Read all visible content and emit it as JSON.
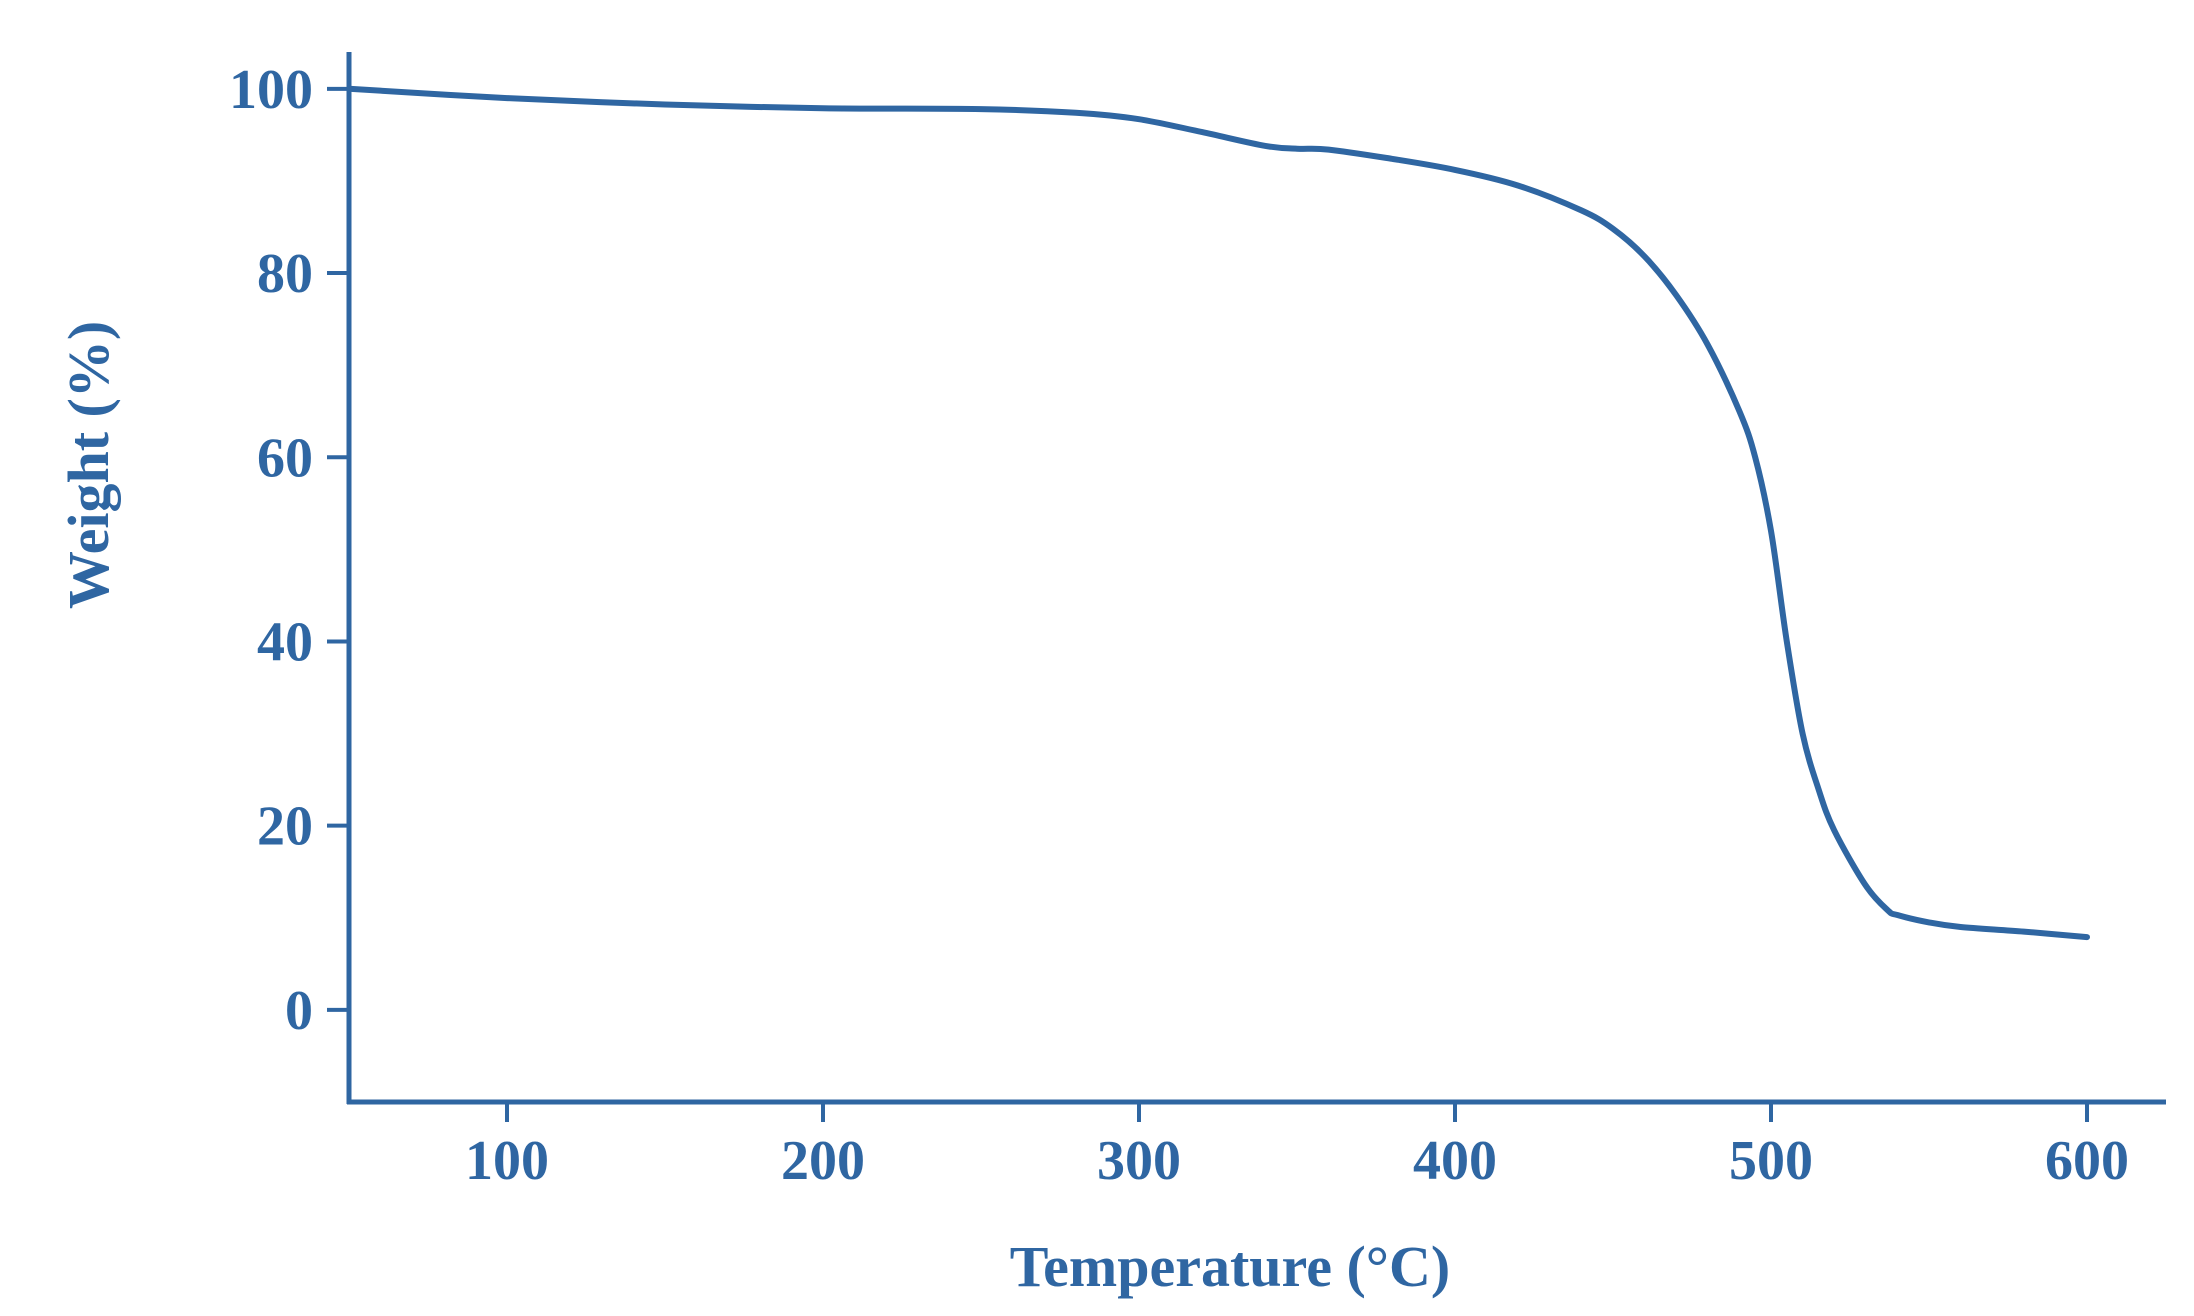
{
  "colors": {
    "accent": "#2f66a2",
    "background": "#ffffff"
  },
  "chart_data": {
    "type": "line",
    "title": "",
    "xlabel": "Temperature (°C)",
    "ylabel": "Weight (%)",
    "xlim": [
      50,
      625
    ],
    "ylim": [
      -10,
      104
    ],
    "xticks": [
      100,
      200,
      300,
      400,
      500,
      600
    ],
    "yticks": [
      0,
      20,
      40,
      60,
      80,
      100
    ],
    "grid": false,
    "legend": "none",
    "series": [
      {
        "x": [
          50,
          100,
          150,
          200,
          250,
          280,
          300,
          320,
          340,
          350,
          360,
          380,
          400,
          420,
          440,
          450,
          460,
          470,
          480,
          490,
          495,
          500,
          505,
          510,
          515,
          520,
          530,
          537,
          540,
          550,
          560,
          580,
          600
        ],
        "y": [
          100,
          99.0,
          98.3,
          97.9,
          97.8,
          97.4,
          96.7,
          95.3,
          93.8,
          93.5,
          93.4,
          92.4,
          91.2,
          89.5,
          86.8,
          84.8,
          81.8,
          77.6,
          72.2,
          65.0,
          60.0,
          52.0,
          40.0,
          30.0,
          24.0,
          19.5,
          13.5,
          10.8,
          10.3,
          9.5,
          9.0,
          8.5,
          7.9
        ]
      }
    ]
  }
}
